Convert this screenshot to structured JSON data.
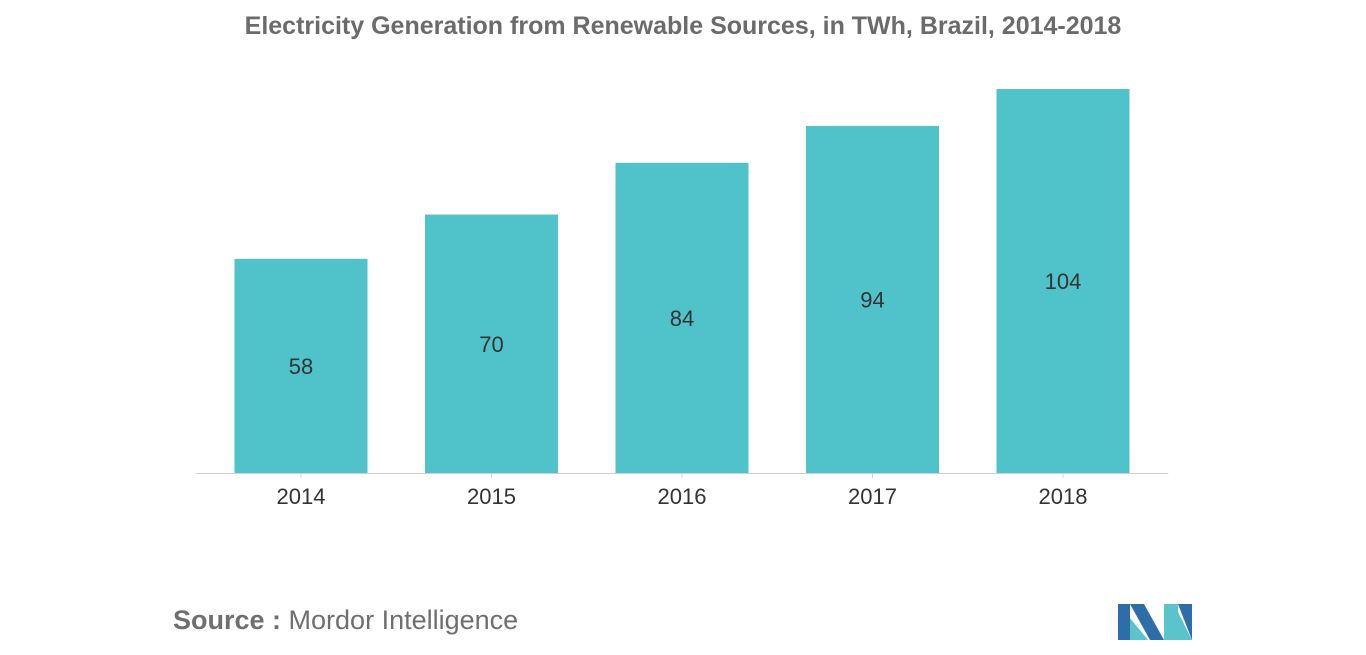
{
  "chart_data": {
    "type": "bar",
    "title": "Electricity Generation from Renewable Sources, in TWh, Brazil, 2014-2018",
    "categories": [
      "2014",
      "2015",
      "2016",
      "2017",
      "2018"
    ],
    "values": [
      58,
      70,
      84,
      94,
      104
    ],
    "xlabel": "",
    "ylabel": "",
    "ylim": [
      0,
      104
    ],
    "grid": false,
    "legend": "none",
    "bar_color": "#50c3ca"
  },
  "source": {
    "label": "Source :",
    "text": "Mordor Intelligence"
  },
  "logo": {
    "icon": "mordor-intelligence-logo-icon",
    "colors": [
      "#2e6ea8",
      "#5bc3cc"
    ]
  },
  "colors": {
    "title": "#6b6b6b",
    "axis": "#d0d0d0",
    "label": "#333333",
    "source": "#6f6f6f"
  }
}
